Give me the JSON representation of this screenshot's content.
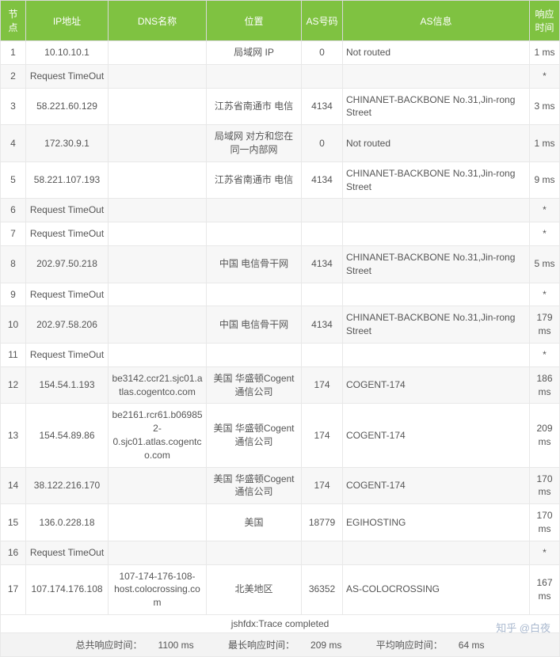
{
  "columns": [
    {
      "key": "node",
      "label": "节点",
      "class": "col-node"
    },
    {
      "key": "ip",
      "label": "IP地址",
      "class": "col-ip"
    },
    {
      "key": "dns",
      "label": "DNS名称",
      "class": "col-dns"
    },
    {
      "key": "loc",
      "label": "位置",
      "class": "col-loc"
    },
    {
      "key": "as",
      "label": "AS号码",
      "class": "col-as"
    },
    {
      "key": "asinfo",
      "label": "AS信息",
      "class": "col-asinfo"
    },
    {
      "key": "time",
      "label": "响应时间",
      "class": "col-time"
    }
  ],
  "rows": [
    {
      "node": "1",
      "ip": "10.10.10.1",
      "dns": "",
      "loc": "局域网 IP",
      "as": "0",
      "asinfo": "Not routed",
      "time": "1 ms"
    },
    {
      "node": "2",
      "ip": "Request TimeOut",
      "dns": "",
      "loc": "",
      "as": "",
      "asinfo": "",
      "time": "*"
    },
    {
      "node": "3",
      "ip": "58.221.60.129",
      "dns": "",
      "loc": "江苏省南通市 电信",
      "as": "4134",
      "asinfo": "CHINANET-BACKBONE No.31,Jin-rong Street",
      "time": "3 ms"
    },
    {
      "node": "4",
      "ip": "172.30.9.1",
      "dns": "",
      "loc": "局域网 对方和您在同一内部网",
      "as": "0",
      "asinfo": "Not routed",
      "time": "1 ms"
    },
    {
      "node": "5",
      "ip": "58.221.107.193",
      "dns": "",
      "loc": "江苏省南通市 电信",
      "as": "4134",
      "asinfo": "CHINANET-BACKBONE No.31,Jin-rong Street",
      "time": "9 ms"
    },
    {
      "node": "6",
      "ip": "Request TimeOut",
      "dns": "",
      "loc": "",
      "as": "",
      "asinfo": "",
      "time": "*"
    },
    {
      "node": "7",
      "ip": "Request TimeOut",
      "dns": "",
      "loc": "",
      "as": "",
      "asinfo": "",
      "time": "*"
    },
    {
      "node": "8",
      "ip": "202.97.50.218",
      "dns": "",
      "loc": "中国 电信骨干网",
      "as": "4134",
      "asinfo": "CHINANET-BACKBONE No.31,Jin-rong Street",
      "time": "5 ms"
    },
    {
      "node": "9",
      "ip": "Request TimeOut",
      "dns": "",
      "loc": "",
      "as": "",
      "asinfo": "",
      "time": "*"
    },
    {
      "node": "10",
      "ip": "202.97.58.206",
      "dns": "",
      "loc": "中国 电信骨干网",
      "as": "4134",
      "asinfo": "CHINANET-BACKBONE No.31,Jin-rong Street",
      "time": "179 ms"
    },
    {
      "node": "11",
      "ip": "Request TimeOut",
      "dns": "",
      "loc": "",
      "as": "",
      "asinfo": "",
      "time": "*"
    },
    {
      "node": "12",
      "ip": "154.54.1.193",
      "dns": "be3142.ccr21.sjc01.atlas.cogentco.com",
      "loc": "美国 华盛顿Cogent通信公司",
      "as": "174",
      "asinfo": "COGENT-174",
      "time": "186 ms"
    },
    {
      "node": "13",
      "ip": "154.54.89.86",
      "dns": "be2161.rcr61.b069852-0.sjc01.atlas.cogentco.com",
      "loc": "美国 华盛顿Cogent通信公司",
      "as": "174",
      "asinfo": "COGENT-174",
      "time": "209 ms"
    },
    {
      "node": "14",
      "ip": "38.122.216.170",
      "dns": "",
      "loc": "美国 华盛顿Cogent通信公司",
      "as": "174",
      "asinfo": "COGENT-174",
      "time": "170 ms"
    },
    {
      "node": "15",
      "ip": "136.0.228.18",
      "dns": "",
      "loc": "美国",
      "as": "18779",
      "asinfo": "EGIHOSTING",
      "time": "170 ms"
    },
    {
      "node": "16",
      "ip": "Request TimeOut",
      "dns": "",
      "loc": "",
      "as": "",
      "asinfo": "",
      "time": "*"
    },
    {
      "node": "17",
      "ip": "107.174.176.108",
      "dns": "107-174-176-108-host.colocrossing.com",
      "loc": "北美地区",
      "as": "36352",
      "asinfo": "AS-COLOCROSSING",
      "time": "167 ms"
    }
  ],
  "trace_status": "jshfdx:Trace completed",
  "stats": {
    "total_label": "总共响应时间：",
    "total_value": "1100 ms",
    "max_label": "最长响应时间：",
    "max_value": "209 ms",
    "avg_label": "平均响应时间：",
    "avg_value": "64 ms"
  },
  "watermark": "知乎 @白夜",
  "style": {
    "header_bg": "#7fc241",
    "header_fg": "#ffffff",
    "row_alt_bg": "#f7f7f7",
    "border_color": "#e8e8e8",
    "text_color": "#555555"
  }
}
